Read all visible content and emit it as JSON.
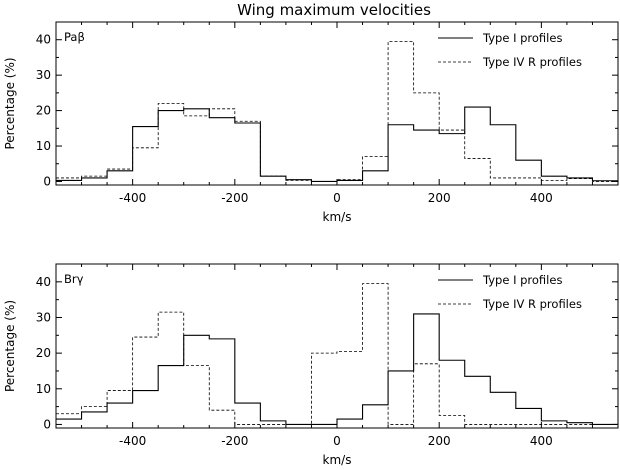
{
  "title": "Wing maximum velocities",
  "chart_data": [
    {
      "type": "histogram",
      "panel_label": "Paβ",
      "xlabel": "km/s",
      "ylabel": "Percentage (%)",
      "xlim": [
        -550,
        550
      ],
      "ylim": [
        -1,
        45
      ],
      "xticks": [
        -400,
        -200,
        0,
        200,
        400
      ],
      "yticks": [
        0,
        10,
        20,
        30,
        40
      ],
      "legend_position": "top-right",
      "bin_edges": [
        -550,
        -500,
        -450,
        -400,
        -350,
        -300,
        -250,
        -200,
        -150,
        -100,
        -50,
        0,
        50,
        100,
        150,
        200,
        250,
        300,
        350,
        400,
        450,
        500,
        550
      ],
      "series": [
        {
          "name": "Type I profiles",
          "style": "solid",
          "values": [
            0.3,
            1.0,
            3.0,
            15.5,
            20.0,
            20.5,
            18.0,
            16.5,
            1.5,
            0.5,
            0.0,
            0.3,
            3.0,
            16.0,
            14.5,
            13.5,
            21.0,
            16.0,
            6.0,
            1.5,
            1.0,
            0.2
          ]
        },
        {
          "name": "Type IV R profiles",
          "style": "dashed",
          "values": [
            1.0,
            1.5,
            3.5,
            9.5,
            22.0,
            18.5,
            20.5,
            17.0,
            1.5,
            0.3,
            0.0,
            0.5,
            7.0,
            39.5,
            25.0,
            14.5,
            6.5,
            1.0,
            1.0,
            0.3,
            0.8,
            0.0
          ]
        }
      ]
    },
    {
      "type": "histogram",
      "panel_label": "Brγ",
      "xlabel": "km/s",
      "ylabel": "Percentage (%)",
      "xlim": [
        -550,
        550
      ],
      "ylim": [
        -1,
        45
      ],
      "xticks": [
        -400,
        -200,
        0,
        200,
        400
      ],
      "yticks": [
        0,
        10,
        20,
        30,
        40
      ],
      "legend_position": "top-right",
      "bin_edges": [
        -550,
        -500,
        -450,
        -400,
        -350,
        -300,
        -250,
        -200,
        -150,
        -100,
        -50,
        0,
        50,
        100,
        150,
        200,
        250,
        300,
        350,
        400,
        450,
        500,
        550
      ],
      "series": [
        {
          "name": "Type I profiles",
          "style": "solid",
          "values": [
            1.5,
            3.5,
            6.0,
            9.5,
            16.5,
            25.0,
            24.0,
            6.0,
            1.0,
            0.0,
            0.0,
            1.5,
            5.5,
            15.0,
            31.0,
            18.0,
            13.5,
            9.0,
            4.5,
            1.0,
            0.5,
            0.0
          ]
        },
        {
          "name": "Type IV R profiles",
          "style": "dashed",
          "values": [
            3.0,
            5.0,
            9.5,
            24.5,
            31.5,
            16.5,
            4.0,
            0.0,
            0.0,
            0.0,
            20.0,
            20.5,
            39.5,
            0.0,
            17.0,
            2.5,
            0.0,
            0.0,
            0.0,
            0.0,
            0.0,
            0.0
          ]
        }
      ]
    }
  ]
}
